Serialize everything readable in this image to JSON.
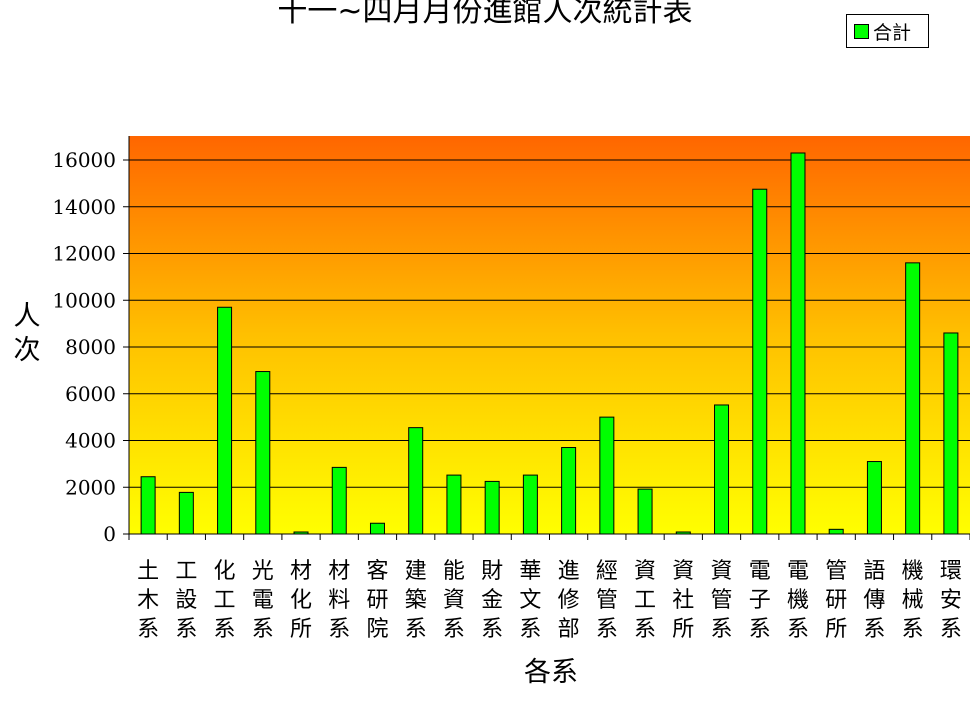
{
  "chart_data": {
    "type": "bar",
    "title": "十一~四月月份進館人次統計表",
    "xlabel": "各系",
    "ylabel": "人次",
    "ylim": [
      0,
      16000
    ],
    "y_ticks": [
      "0",
      "2000",
      "4000",
      "6000",
      "8000",
      "10000",
      "12000",
      "14000",
      "16000"
    ],
    "grid": true,
    "legend_position": "top-right",
    "categories": [
      "土木系",
      "工設系",
      "化工系",
      "光電系",
      "材化所",
      "材料系",
      "客研院",
      "建築系",
      "能資系",
      "財金系",
      "華文系",
      "進修部",
      "經管系",
      "資工系",
      "資社所",
      "資管系",
      "電子系",
      "電機系",
      "管研所",
      "語傳系",
      "機械系",
      "環安系"
    ],
    "series": [
      {
        "name": "合計",
        "color": "#00ff00",
        "values": [
          2450,
          1780,
          9700,
          6950,
          0,
          2850,
          460,
          4550,
          2520,
          2250,
          2520,
          3700,
          5000,
          1920,
          60,
          5520,
          14750,
          16300,
          200,
          3100,
          11600,
          8600
        ]
      }
    ]
  }
}
